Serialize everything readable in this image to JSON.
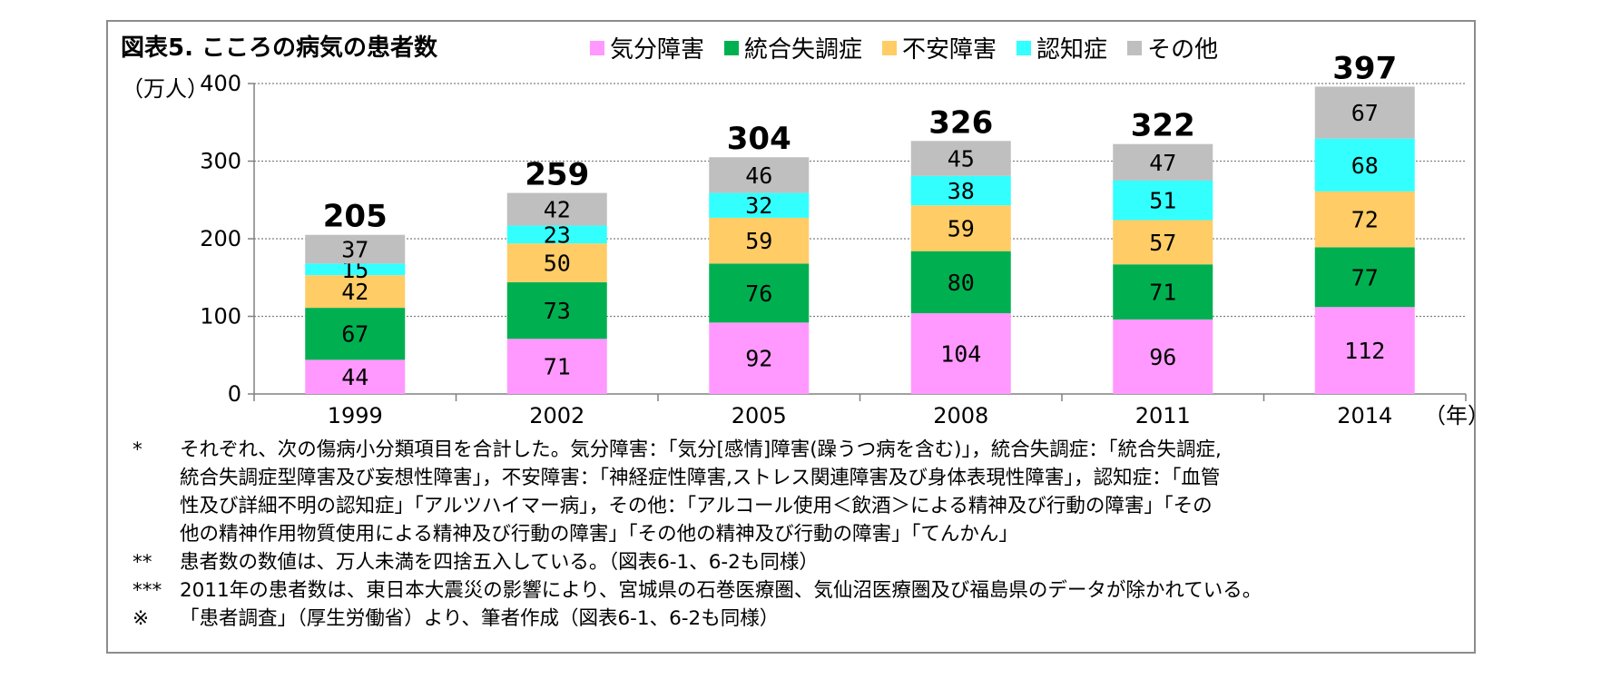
{
  "title": "図表5.  こころの病気の患者数",
  "unit_label": "（万人）",
  "x_unit_label": "（年）",
  "colors": {
    "気分障害": "#ff99ff",
    "統合失調症": "#00b050",
    "不安障害": "#ffcc66",
    "認知症": "#33ffff",
    "その他": "#bfbfbf",
    "frame": "#8c8c8c",
    "grid": "#808080"
  },
  "chart_data": {
    "type": "bar",
    "stacked": true,
    "categories": [
      "1999",
      "2002",
      "2005",
      "2008",
      "2011",
      "2014"
    ],
    "series": [
      {
        "name": "気分障害",
        "values": [
          44,
          71,
          92,
          104,
          96,
          112
        ]
      },
      {
        "name": "統合失調症",
        "values": [
          67,
          73,
          76,
          80,
          71,
          77
        ]
      },
      {
        "name": "不安障害",
        "values": [
          42,
          50,
          59,
          59,
          57,
          72
        ]
      },
      {
        "name": "認知症",
        "values": [
          15,
          23,
          32,
          38,
          51,
          68
        ]
      },
      {
        "name": "その他",
        "values": [
          37,
          42,
          46,
          45,
          47,
          67
        ]
      }
    ],
    "totals": [
      205,
      259,
      304,
      326,
      322,
      397
    ],
    "ylim": [
      0,
      400
    ],
    "yticks": [
      0,
      100,
      200,
      300,
      400
    ],
    "grid": true,
    "legend_position": "top"
  },
  "notes": [
    {
      "mark": "*",
      "lines": [
        "それぞれ、次の傷病小分類項目を合計した。気分障害：「気分[感情]障害(躁うつ病を含む)」，統合失調症：「統合失調症,",
        "統合失調症型障害及び妄想性障害」，不安障害：「神経症性障害,ストレス関連障害及び身体表現性障害」，認知症：「血管",
        "性及び詳細不明の認知症」「アルツハイマー病」，その他：「アルコール使用＜飲酒＞による精神及び行動の障害」「その",
        "他の精神作用物質使用による精神及び行動の障害」「その他の精神及び行動の障害」「てんかん」"
      ]
    },
    {
      "mark": "**",
      "lines": [
        "患者数の数値は、万人未満を四捨五入している。（図表6-1、6-2も同様）"
      ]
    },
    {
      "mark": "***",
      "lines": [
        "2011年の患者数は、東日本大震災の影響により、宮城県の石巻医療圏、気仙沼医療圏及び福島県のデータが除かれている。"
      ]
    },
    {
      "mark": "※",
      "lines": [
        "「患者調査」（厚生労働省）より、筆者作成（図表6-1、6-2も同様）"
      ]
    }
  ]
}
